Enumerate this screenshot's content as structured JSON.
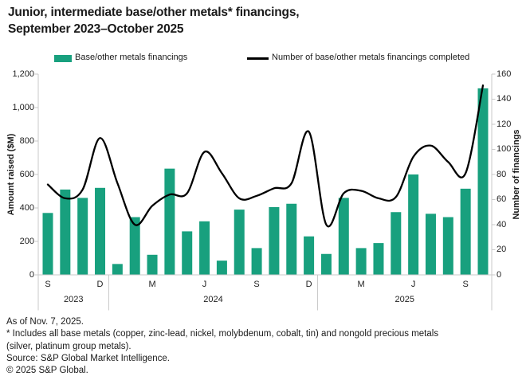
{
  "title": {
    "line1": "Junior, intermediate base/other metals* financings,",
    "line2": "September 2023–October 2025"
  },
  "legend": {
    "bar_label": "Base/other metals financings",
    "line_label": "Number of base/other metals financings completed"
  },
  "colors": {
    "bar_green": "#18A07E",
    "line_black": "#000000",
    "axis_gray": "#c9c9c9",
    "text_dark": "#1a1a1a"
  },
  "chart_data": {
    "type": "bar+line",
    "categories": [
      "Sep 2023",
      "Oct 2023",
      "Nov 2023",
      "Dec 2023",
      "Jan 2024",
      "Feb 2024",
      "Mar 2024",
      "Apr 2024",
      "May 2024",
      "Jun 2024",
      "Jul 2024",
      "Aug 2024",
      "Sep 2024",
      "Oct 2024",
      "Nov 2024",
      "Dec 2024",
      "Jan 2025",
      "Feb 2025",
      "Mar 2025",
      "Apr 2025",
      "May 2025",
      "Jun 2025",
      "Jul 2025",
      "Aug 2025",
      "Sep 2025",
      "Oct 2025"
    ],
    "series": [
      {
        "name": "Base/other metals financings",
        "type": "bar",
        "axis": "left",
        "values": [
          370,
          510,
          460,
          520,
          65,
          345,
          120,
          635,
          260,
          320,
          85,
          390,
          160,
          405,
          425,
          230,
          125,
          460,
          160,
          190,
          375,
          600,
          365,
          345,
          515,
          1115
        ]
      },
      {
        "name": "Number of base/other metals financings completed",
        "type": "line",
        "axis": "right",
        "values": [
          72,
          61,
          68,
          109,
          73,
          40,
          55,
          64,
          65,
          98,
          81,
          61,
          63,
          69,
          73,
          114,
          40,
          65,
          67,
          61,
          62,
          94,
          103,
          90,
          81,
          151
        ]
      }
    ],
    "left_axis": {
      "title": "Amount raised ($M)",
      "min": 0,
      "max": 1200,
      "tick_labels": [
        "1,200",
        "1,000",
        "800",
        "600",
        "400",
        "200",
        "0"
      ]
    },
    "right_axis": {
      "title": "Number of financings",
      "min": 0,
      "max": 160,
      "tick_labels": [
        "160",
        "140",
        "120",
        "100",
        "80",
        "60",
        "40",
        "20",
        "0"
      ]
    },
    "x_axis": {
      "month_tick_labels": [
        "S",
        "D",
        "M",
        "J",
        "S",
        "D",
        "M",
        "J",
        "S"
      ],
      "month_tick_indices": [
        0,
        3,
        6,
        9,
        12,
        15,
        18,
        21,
        24
      ],
      "year_groups": [
        {
          "label": "2023",
          "months": 4
        },
        {
          "label": "2024",
          "months": 12
        },
        {
          "label": "2025",
          "months": 10
        }
      ]
    },
    "grid": "off",
    "legend_position": "top"
  },
  "footer": {
    "as_of": "As of Nov. 7, 2025.",
    "footnote_line1": "* Includes all base metals (copper, zinc-lead, nickel, molybdenum, cobalt, tin) and nongold precious metals",
    "footnote_line2": "(silver, platinum group metals).",
    "source": "Source: S&P Global Market Intelligence.",
    "copyright": "© 2025 S&P Global."
  }
}
